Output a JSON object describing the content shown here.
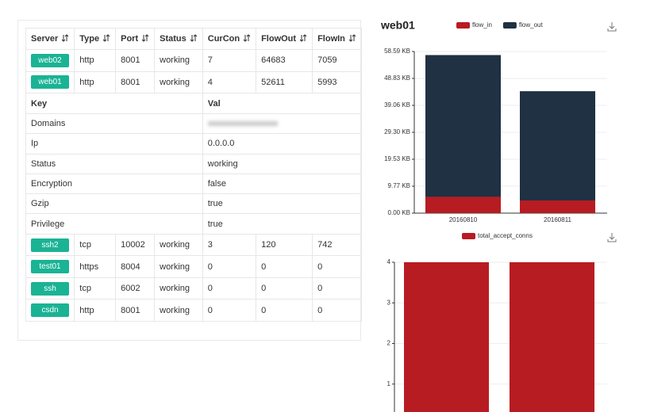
{
  "table": {
    "columns": [
      "Server",
      "Type",
      "Port",
      "Status",
      "CurCon",
      "FlowOut",
      "FlowIn"
    ],
    "rows": [
      [
        "web02",
        "http",
        8001,
        "working",
        7,
        64683,
        7059
      ],
      [
        "web01",
        "http",
        8001,
        "working",
        4,
        52611,
        5993
      ]
    ],
    "detail": {
      "columns": [
        "Key",
        "Val"
      ],
      "rows": [
        [
          "Domains"
        ],
        [
          "Ip",
          "0.0.0.0"
        ],
        [
          "Status",
          "working"
        ],
        [
          "Encryption",
          "false"
        ],
        [
          "Gzip",
          "true"
        ],
        [
          "Privilege",
          "true"
        ]
      ]
    },
    "more_rows": [
      [
        "ssh2",
        "tcp",
        10002,
        "working",
        3,
        120,
        742
      ],
      [
        "test01",
        "https",
        8004,
        "working",
        0,
        0,
        0
      ],
      [
        "ssh",
        "tcp",
        6002,
        "working",
        0,
        0,
        0
      ],
      [
        "csdn",
        "http",
        8001,
        "working",
        0,
        0,
        0
      ]
    ]
  },
  "chart_data": [
    {
      "type": "bar",
      "title": "web01",
      "categories": [
        "20160810",
        "20160811"
      ],
      "series": [
        {
          "name": "flow_in",
          "color": "#b71c22",
          "values": [
            5.9,
            4.6
          ]
        },
        {
          "name": "flow_out",
          "color": "#1f3142",
          "values": [
            51.4,
            39.6
          ]
        }
      ],
      "ylim": [
        0,
        58.59
      ],
      "yticks": [
        {
          "value": 0,
          "label": "0.00 KB"
        },
        {
          "value": 9.77,
          "label": "9.77 KB"
        },
        {
          "value": 19.53,
          "label": "19.53 KB"
        },
        {
          "value": 29.3,
          "label": "29.30 KB"
        },
        {
          "value": 39.06,
          "label": "39.06 KB"
        },
        {
          "value": 48.83,
          "label": "48.83 KB"
        },
        {
          "value": 58.59,
          "label": "58.59 KB"
        }
      ],
      "grid": true
    },
    {
      "type": "bar",
      "categories": [
        null,
        null
      ],
      "series": [
        {
          "name": "total_accept_conns",
          "color": "#b71c22",
          "values": [
            4,
            4
          ]
        }
      ],
      "ylim": [
        0,
        4
      ],
      "yticks": [
        1,
        2,
        3,
        4
      ],
      "grid": true
    }
  ]
}
